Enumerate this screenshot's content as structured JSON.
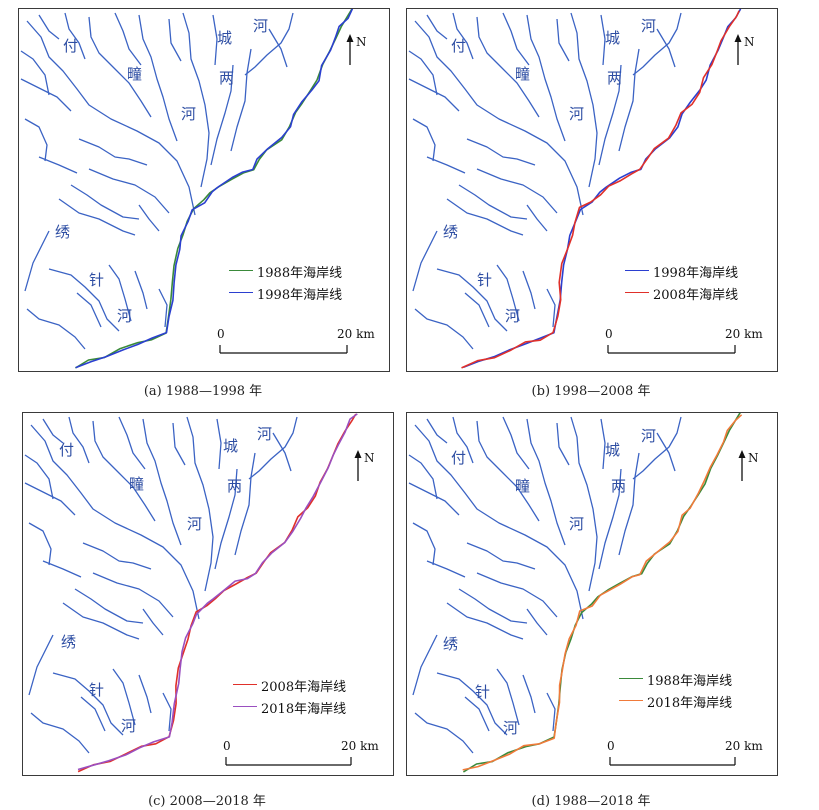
{
  "colors": {
    "river": "#3b63c4",
    "coast_1988": "#3a8a3a",
    "coast_1998": "#2b3fd0",
    "coast_2008": "#e0302a",
    "coast_2018_purple": "#9a4fc0",
    "coast_2018_orange": "#f07a3a",
    "label": "#2e4ea3"
  },
  "river_labels": {
    "fu": "付",
    "tong": "疃",
    "he1": "河",
    "cheng": "城",
    "he2": "河",
    "liang": "两",
    "he3": "河",
    "xiu": "绣",
    "zhen": "针",
    "he4": "河"
  },
  "north_label": "N",
  "scale": {
    "start": "0",
    "end": "20 km"
  },
  "panels": [
    {
      "caption": "(a) 1988—1998 年",
      "legend": [
        {
          "label": "1988年海岸线",
          "color": "#3a8a3a"
        },
        {
          "label": "1998年海岸线",
          "color": "#2b3fd0"
        }
      ]
    },
    {
      "caption": "(b) 1998—2008 年",
      "legend": [
        {
          "label": "1998年海岸线",
          "color": "#2b3fd0"
        },
        {
          "label": "2008年海岸线",
          "color": "#e0302a"
        }
      ]
    },
    {
      "caption": "(c) 2008—2018 年",
      "legend": [
        {
          "label": "2008年海岸线",
          "color": "#e0302a"
        },
        {
          "label": "2018年海岸线",
          "color": "#9a4fc0"
        }
      ]
    },
    {
      "caption": "(d) 1988—2018 年",
      "legend": [
        {
          "label": "1988年海岸线",
          "color": "#3a8a3a"
        },
        {
          "label": "2018年海岸线",
          "color": "#f07a3a"
        }
      ]
    }
  ]
}
